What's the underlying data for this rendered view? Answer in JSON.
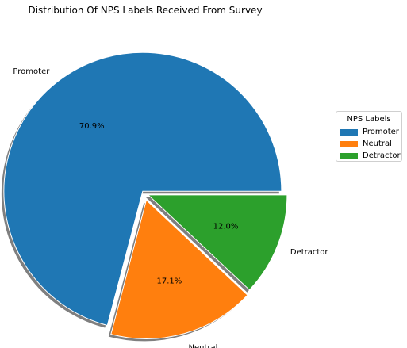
{
  "chart_data": {
    "type": "pie",
    "title": "Distribution Of NPS Labels Received From Survey",
    "slices": [
      {
        "label": "Promoter",
        "value": 70.9,
        "pct_label": "70.9%",
        "color": "#1f77b4"
      },
      {
        "label": "Neutral",
        "value": 17.1,
        "pct_label": "17.1%",
        "color": "#ff7f0e"
      },
      {
        "label": "Detractor",
        "value": 12.0,
        "pct_label": "12.0%",
        "color": "#2ca02c"
      }
    ],
    "exploded": true,
    "shadow": true,
    "legend": {
      "title": "NPS Labels",
      "placement": "right",
      "entries": [
        "Promoter",
        "Neutral",
        "Detractor"
      ]
    }
  }
}
